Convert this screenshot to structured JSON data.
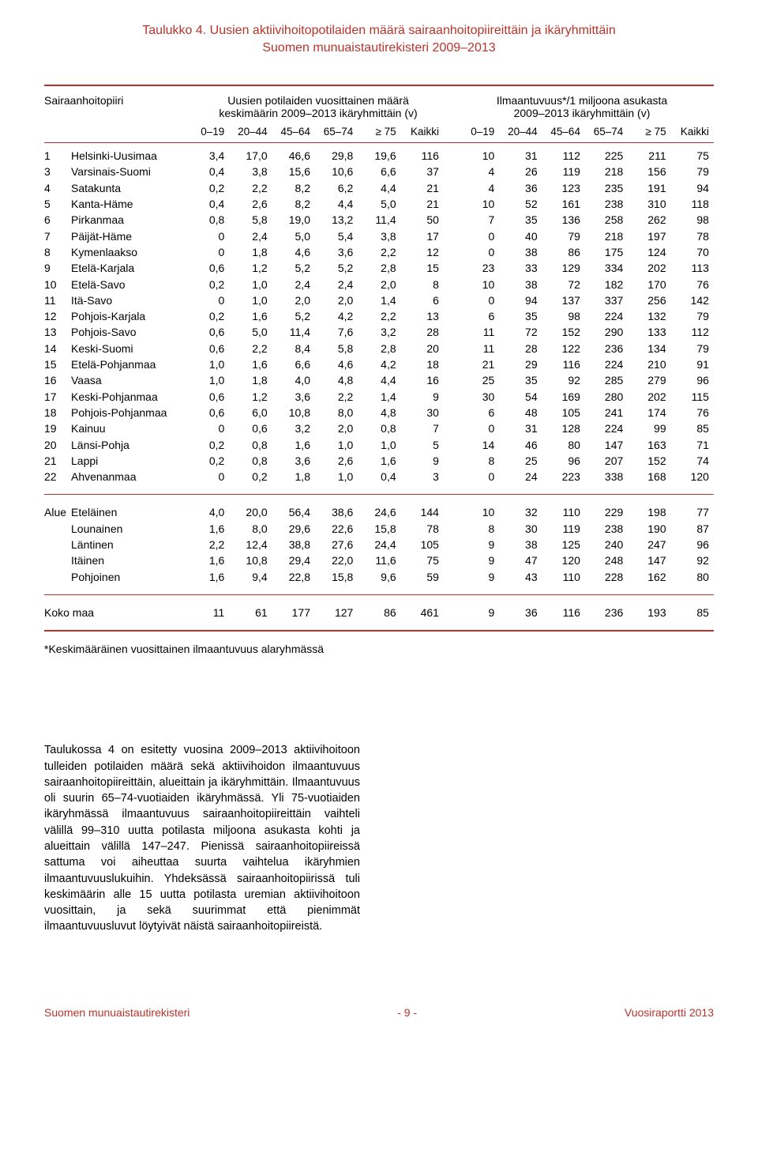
{
  "colors": {
    "accent": "#b8342b",
    "text": "#000000",
    "background": "#ffffff"
  },
  "typography": {
    "base_fontsize_pt": 11,
    "title_fontsize_pt": 12,
    "font_family": "Arial"
  },
  "title": {
    "line1": "Taulukko 4. Uusien aktiivihoitopotilaiden määrä sairaanhoitopiireittäin ja ikäryhmittäin",
    "line2": "Suomen munuaistautirekisteri 2009–2013"
  },
  "header": {
    "label_col": "Sairaanhoitopiiri",
    "group1_line1": "Uusien potilaiden vuosittainen määrä",
    "group1_line2": "keskimäärin 2009–2013 ikäryhmittäin (v)",
    "group2_line1": "Ilmaantuvuus*/1 miljoona asukasta",
    "group2_line2": "2009–2013 ikäryhmittäin (v)",
    "cols": [
      "0–19",
      "20–44",
      "45–64",
      "65–74",
      "≥ 75",
      "Kaikki",
      "0–19",
      "20–44",
      "45–64",
      "65–74",
      "≥ 75",
      "Kaikki"
    ]
  },
  "rows": [
    {
      "n": "1",
      "name": "Helsinki-Uusimaa",
      "v": [
        "3,4",
        "17,0",
        "46,6",
        "29,8",
        "19,6",
        "116",
        "10",
        "31",
        "112",
        "225",
        "211",
        "75"
      ]
    },
    {
      "n": "3",
      "name": "Varsinais-Suomi",
      "v": [
        "0,4",
        "3,8",
        "15,6",
        "10,6",
        "6,6",
        "37",
        "4",
        "26",
        "119",
        "218",
        "156",
        "79"
      ]
    },
    {
      "n": "4",
      "name": "Satakunta",
      "v": [
        "0,2",
        "2,2",
        "8,2",
        "6,2",
        "4,4",
        "21",
        "4",
        "36",
        "123",
        "235",
        "191",
        "94"
      ]
    },
    {
      "n": "5",
      "name": "Kanta-Häme",
      "v": [
        "0,4",
        "2,6",
        "8,2",
        "4,4",
        "5,0",
        "21",
        "10",
        "52",
        "161",
        "238",
        "310",
        "118"
      ]
    },
    {
      "n": "6",
      "name": "Pirkanmaa",
      "v": [
        "0,8",
        "5,8",
        "19,0",
        "13,2",
        "11,4",
        "50",
        "7",
        "35",
        "136",
        "258",
        "262",
        "98"
      ]
    },
    {
      "n": "7",
      "name": "Päijät-Häme",
      "v": [
        "0",
        "2,4",
        "5,0",
        "5,4",
        "3,8",
        "17",
        "0",
        "40",
        "79",
        "218",
        "197",
        "78"
      ]
    },
    {
      "n": "8",
      "name": "Kymenlaakso",
      "v": [
        "0",
        "1,8",
        "4,6",
        "3,6",
        "2,2",
        "12",
        "0",
        "38",
        "86",
        "175",
        "124",
        "70"
      ]
    },
    {
      "n": "9",
      "name": "Etelä-Karjala",
      "v": [
        "0,6",
        "1,2",
        "5,2",
        "5,2",
        "2,8",
        "15",
        "23",
        "33",
        "129",
        "334",
        "202",
        "113"
      ]
    },
    {
      "n": "10",
      "name": "Etelä-Savo",
      "v": [
        "0,2",
        "1,0",
        "2,4",
        "2,4",
        "2,0",
        "8",
        "10",
        "38",
        "72",
        "182",
        "170",
        "76"
      ]
    },
    {
      "n": "11",
      "name": "Itä-Savo",
      "v": [
        "0",
        "1,0",
        "2,0",
        "2,0",
        "1,4",
        "6",
        "0",
        "94",
        "137",
        "337",
        "256",
        "142"
      ]
    },
    {
      "n": "12",
      "name": "Pohjois-Karjala",
      "v": [
        "0,2",
        "1,6",
        "5,2",
        "4,2",
        "2,2",
        "13",
        "6",
        "35",
        "98",
        "224",
        "132",
        "79"
      ]
    },
    {
      "n": "13",
      "name": "Pohjois-Savo",
      "v": [
        "0,6",
        "5,0",
        "11,4",
        "7,6",
        "3,2",
        "28",
        "11",
        "72",
        "152",
        "290",
        "133",
        "112"
      ]
    },
    {
      "n": "14",
      "name": "Keski-Suomi",
      "v": [
        "0,6",
        "2,2",
        "8,4",
        "5,8",
        "2,8",
        "20",
        "11",
        "28",
        "122",
        "236",
        "134",
        "79"
      ]
    },
    {
      "n": "15",
      "name": "Etelä-Pohjanmaa",
      "v": [
        "1,0",
        "1,6",
        "6,6",
        "4,6",
        "4,2",
        "18",
        "21",
        "29",
        "116",
        "224",
        "210",
        "91"
      ]
    },
    {
      "n": "16",
      "name": "Vaasa",
      "v": [
        "1,0",
        "1,8",
        "4,0",
        "4,8",
        "4,4",
        "16",
        "25",
        "35",
        "92",
        "285",
        "279",
        "96"
      ]
    },
    {
      "n": "17",
      "name": "Keski-Pohjanmaa",
      "v": [
        "0,6",
        "1,2",
        "3,6",
        "2,2",
        "1,4",
        "9",
        "30",
        "54",
        "169",
        "280",
        "202",
        "115"
      ]
    },
    {
      "n": "18",
      "name": "Pohjois-Pohjanmaa",
      "v": [
        "0,6",
        "6,0",
        "10,8",
        "8,0",
        "4,8",
        "30",
        "6",
        "48",
        "105",
        "241",
        "174",
        "76"
      ]
    },
    {
      "n": "19",
      "name": "Kainuu",
      "v": [
        "0",
        "0,6",
        "3,2",
        "2,0",
        "0,8",
        "7",
        "0",
        "31",
        "128",
        "224",
        "99",
        "85"
      ]
    },
    {
      "n": "20",
      "name": "Länsi-Pohja",
      "v": [
        "0,2",
        "0,8",
        "1,6",
        "1,0",
        "1,0",
        "5",
        "14",
        "46",
        "80",
        "147",
        "163",
        "71"
      ]
    },
    {
      "n": "21",
      "name": "Lappi",
      "v": [
        "0,2",
        "0,8",
        "3,6",
        "2,6",
        "1,6",
        "9",
        "8",
        "25",
        "96",
        "207",
        "152",
        "74"
      ]
    },
    {
      "n": "22",
      "name": "Ahvenanmaa",
      "v": [
        "0",
        "0,2",
        "1,8",
        "1,0",
        "0,4",
        "3",
        "0",
        "24",
        "223",
        "338",
        "168",
        "120"
      ]
    }
  ],
  "alue_label": "Alue",
  "alue_rows": [
    {
      "name": "Eteläinen",
      "v": [
        "4,0",
        "20,0",
        "56,4",
        "38,6",
        "24,6",
        "144",
        "10",
        "32",
        "110",
        "229",
        "198",
        "77"
      ]
    },
    {
      "name": "Lounainen",
      "v": [
        "1,6",
        "8,0",
        "29,6",
        "22,6",
        "15,8",
        "78",
        "8",
        "30",
        "119",
        "238",
        "190",
        "87"
      ]
    },
    {
      "name": "Läntinen",
      "v": [
        "2,2",
        "12,4",
        "38,8",
        "27,6",
        "24,4",
        "105",
        "9",
        "38",
        "125",
        "240",
        "247",
        "96"
      ]
    },
    {
      "name": "Itäinen",
      "v": [
        "1,6",
        "10,8",
        "29,4",
        "22,0",
        "11,6",
        "75",
        "9",
        "47",
        "120",
        "248",
        "147",
        "92"
      ]
    },
    {
      "name": "Pohjoinen",
      "v": [
        "1,6",
        "9,4",
        "22,8",
        "15,8",
        "9,6",
        "59",
        "9",
        "43",
        "110",
        "228",
        "162",
        "80"
      ]
    }
  ],
  "total_row": {
    "name": "Koko maa",
    "v": [
      "11",
      "61",
      "177",
      "127",
      "86",
      "461",
      "9",
      "36",
      "116",
      "236",
      "193",
      "85"
    ]
  },
  "footnote": "*Keskimääräinen vuosittainen ilmaantuvuus alaryhmässä",
  "paragraph": "Taulukossa 4 on esitetty vuosina 2009–2013 aktiivihoitoon tulleiden potilaiden määrä sekä aktiivihoidon ilmaantuvuus sairaanhoitopiireittäin, alueittain ja ikäryhmittäin. Ilmaantuvuus oli suurin 65–74-vuotiaiden ikäryhmässä. Yli 75-vuotiaiden ikäryhmässä ilmaantuvuus sairaanhoitopiireittäin vaihteli välillä 99–310 uutta potilasta miljoona asukasta kohti ja alueittain välillä 147–247. Pienissä sairaanhoitopiireissä sattuma voi aiheuttaa suurta vaihtelua ikäryhmien ilmaantuvuuslukuihin. Yhdeksässä sairaanhoitopiirissä tuli keskimäärin alle 15 uutta potilasta uremian aktiivihoitoon vuosittain, ja sekä suurimmat että pienimmät ilmaantuvuusluvut löytyivät näistä sairaanhoitopiireistä.",
  "footer": {
    "left": "Suomen munuaistautirekisteri",
    "center": "- 9 -",
    "right": "Vuosiraportti 2013"
  }
}
